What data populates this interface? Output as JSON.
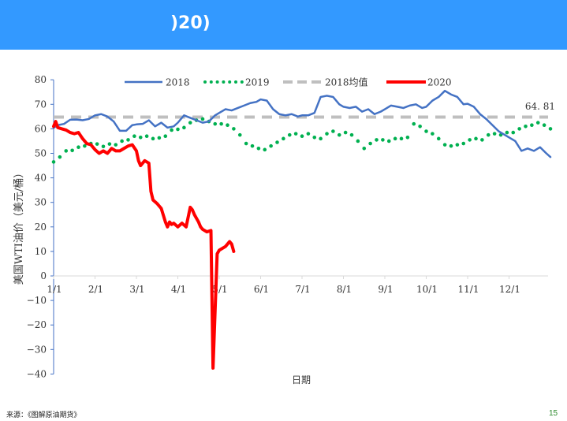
{
  "header": {
    "title_visible": ")20)",
    "bg_color": "#3399FF"
  },
  "footer": {
    "source": "来源：《图解原油期货》",
    "page_number": "15"
  },
  "chart_data": {
    "type": "line",
    "title": "",
    "xlabel": "日期",
    "ylabel": "美国WTI油价（美元/桶）",
    "ylim": [
      -40,
      80
    ],
    "yticks": [
      80,
      70,
      60,
      50,
      40,
      30,
      20,
      10,
      0,
      -10,
      -20,
      -30,
      -40
    ],
    "categories": [
      "1/1",
      "2/1",
      "3/1",
      "4/1",
      "5/1",
      "6/1",
      "7/1",
      "8/1",
      "9/1",
      "10/1",
      "11/1",
      "12/1"
    ],
    "grid": false,
    "legend_position": "top",
    "annotation": "64.81",
    "series": [
      {
        "name": "2018",
        "style": "solid",
        "color": "#4472C4",
        "x": [
          0,
          0.1,
          0.25,
          0.4,
          0.55,
          0.7,
          0.85,
          1.0,
          1.15,
          1.3,
          1.45,
          1.6,
          1.75,
          1.9,
          2.0,
          2.15,
          2.3,
          2.45,
          2.6,
          2.75,
          2.9,
          3.0,
          3.15,
          3.3,
          3.45,
          3.6,
          3.75,
          3.9,
          4.0,
          4.15,
          4.3,
          4.45,
          4.6,
          4.75,
          4.9,
          5.0,
          5.15,
          5.3,
          5.45,
          5.6,
          5.75,
          5.9,
          6.0,
          6.15,
          6.3,
          6.45,
          6.6,
          6.75,
          6.9,
          7.0,
          7.15,
          7.3,
          7.45,
          7.6,
          7.75,
          7.9,
          8.0,
          8.15,
          8.3,
          8.45,
          8.6,
          8.75,
          8.9,
          9.0,
          9.15,
          9.3,
          9.45,
          9.6,
          9.75,
          9.9,
          10.0,
          10.15,
          10.3,
          10.45,
          10.6,
          10.75,
          10.9,
          11.0,
          11.15,
          11.3,
          11.45,
          11.6,
          11.75,
          11.9,
          12.0
        ],
        "values": [
          60.4,
          61.5,
          62,
          63.7,
          63.8,
          63.5,
          64,
          65.5,
          66,
          65,
          63,
          59.2,
          59.2,
          61.5,
          61.8,
          62,
          63.5,
          61,
          62.5,
          60.5,
          61,
          62.5,
          65.5,
          64.5,
          63.5,
          62.5,
          63,
          65.5,
          66.5,
          68,
          67.5,
          68.5,
          69.5,
          70.5,
          71,
          72,
          71.5,
          68,
          66,
          65.5,
          66,
          65,
          65.5,
          65.5,
          66.5,
          73,
          73.5,
          73,
          70,
          69,
          68.5,
          69,
          67,
          68,
          66,
          67,
          68,
          69.5,
          69,
          68.5,
          69.5,
          70,
          68.5,
          69,
          71.5,
          73,
          75.5,
          74,
          73,
          70,
          70.2,
          69,
          66,
          64,
          61.5,
          59,
          57.5,
          56.5,
          55,
          51,
          52,
          51,
          52.5,
          50,
          48.5
        ]
      },
      {
        "name": "2019",
        "style": "dotted",
        "color": "#00B050",
        "x": [
          0,
          0.15,
          0.3,
          0.45,
          0.6,
          0.75,
          0.9,
          1.05,
          1.2,
          1.35,
          1.5,
          1.65,
          1.8,
          1.95,
          2.1,
          2.25,
          2.4,
          2.55,
          2.7,
          2.85,
          3.0,
          3.15,
          3.3,
          3.45,
          3.6,
          3.75,
          3.9,
          4.05,
          4.2,
          4.35,
          4.5,
          4.65,
          4.8,
          4.95,
          5.1,
          5.25,
          5.4,
          5.55,
          5.7,
          5.85,
          6.0,
          6.15,
          6.3,
          6.45,
          6.6,
          6.75,
          6.9,
          7.05,
          7.2,
          7.35,
          7.5,
          7.65,
          7.8,
          7.95,
          8.1,
          8.25,
          8.4,
          8.55,
          8.7,
          8.85,
          9.0,
          9.15,
          9.3,
          9.45,
          9.6,
          9.75,
          9.9,
          10.05,
          10.2,
          10.35,
          10.5,
          10.65,
          10.8,
          10.95,
          11.1,
          11.25,
          11.4,
          11.55,
          11.7,
          11.85,
          12.0
        ],
        "values": [
          46.5,
          48.5,
          51,
          51.2,
          52.5,
          53,
          54,
          53.8,
          52.8,
          53.8,
          53.5,
          55,
          55.5,
          57,
          56.5,
          57,
          56,
          56.3,
          57,
          59.5,
          59.8,
          60.5,
          62.5,
          63.5,
          64,
          63,
          62,
          62,
          61.5,
          60,
          57.5,
          54,
          53,
          52,
          51.5,
          53,
          54.5,
          56,
          57.5,
          58,
          57,
          58,
          56.5,
          56,
          58,
          59,
          57.5,
          58.5,
          57.5,
          55,
          52,
          54,
          55.5,
          55.5,
          55,
          56,
          56,
          56.5,
          62,
          61,
          59,
          58,
          56,
          53.5,
          53,
          53.5,
          54,
          55.5,
          56,
          55.5,
          57.5,
          58,
          57.5,
          58.5,
          58.5,
          60,
          61,
          61.5,
          62.5,
          61.5,
          60
        ]
      },
      {
        "name": "2018均值",
        "style": "dashed",
        "color": "#BFBFBF",
        "x": [
          0,
          12
        ],
        "values": [
          64.81,
          64.81
        ]
      },
      {
        "name": "2020",
        "style": "solid-thick",
        "color": "#FF0000",
        "x": [
          0,
          0.05,
          0.1,
          0.2,
          0.3,
          0.4,
          0.5,
          0.6,
          0.7,
          0.8,
          0.9,
          1.0,
          1.1,
          1.2,
          1.3,
          1.4,
          1.5,
          1.6,
          1.7,
          1.8,
          1.9,
          2.0,
          2.05,
          2.1,
          2.15,
          2.2,
          2.3,
          2.35,
          2.4,
          2.5,
          2.6,
          2.7,
          2.75,
          2.8,
          2.85,
          2.9,
          3.0,
          3.1,
          3.2,
          3.3,
          3.35,
          3.4,
          3.5,
          3.55,
          3.6,
          3.7,
          3.8,
          3.85,
          3.95,
          4.0,
          4.15,
          4.25,
          4.3,
          4.35
        ],
        "values": [
          61,
          63,
          60.5,
          60,
          59.5,
          58.5,
          58,
          58.5,
          56,
          54,
          53.5,
          51.5,
          50,
          51,
          50,
          52,
          51,
          51,
          52,
          53,
          53.5,
          51,
          47,
          45,
          46,
          47,
          46,
          34.5,
          31,
          29.5,
          27.5,
          22,
          20,
          22,
          21,
          21.5,
          20,
          21.5,
          20,
          28,
          27,
          25,
          22,
          20,
          19,
          18,
          18.5,
          -37.6,
          9,
          10.5,
          12,
          14,
          13,
          10
        ]
      }
    ]
  }
}
